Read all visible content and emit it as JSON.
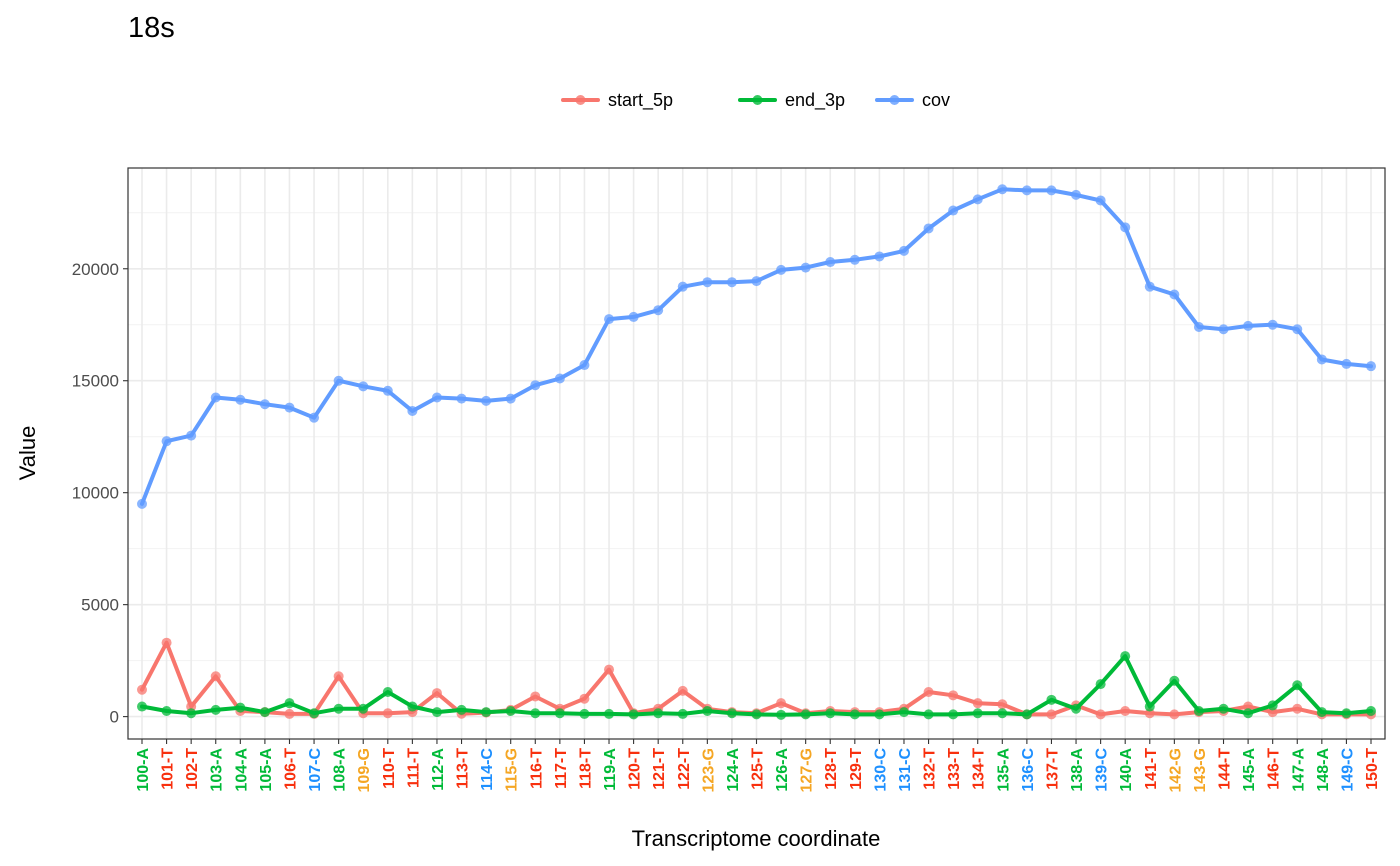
{
  "chart_data": {
    "type": "line",
    "title": "18s",
    "xlabel": "Transcriptome coordinate",
    "ylabel": "Value",
    "ylim": [
      -1000,
      24500
    ],
    "yticks": [
      0,
      5000,
      10000,
      15000,
      20000
    ],
    "legend_position": "top",
    "grid": true,
    "categories": [
      "100-A",
      "101-T",
      "102-T",
      "103-A",
      "104-A",
      "105-A",
      "106-T",
      "107-C",
      "108-A",
      "109-G",
      "110-T",
      "111-T",
      "112-A",
      "113-T",
      "114-C",
      "115-G",
      "116-T",
      "117-T",
      "118-T",
      "119-A",
      "120-T",
      "121-T",
      "122-T",
      "123-G",
      "124-A",
      "125-T",
      "126-A",
      "127-G",
      "128-T",
      "129-T",
      "130-C",
      "131-C",
      "132-T",
      "133-T",
      "134-T",
      "135-A",
      "136-C",
      "137-T",
      "138-A",
      "139-C",
      "140-A",
      "141-T",
      "142-G",
      "143-G",
      "144-T",
      "145-A",
      "146-T",
      "147-A",
      "148-A",
      "149-C",
      "150-T"
    ],
    "base_colors": {
      "A": "#00ba38",
      "T": "#f8300e",
      "C": "#1e90ff",
      "G": "#f5a623"
    },
    "series": [
      {
        "name": "start_5p",
        "color": "#f8766d",
        "values": [
          1200,
          3300,
          450,
          1800,
          250,
          200,
          120,
          120,
          1800,
          150,
          150,
          200,
          1050,
          130,
          180,
          300,
          900,
          350,
          800,
          2100,
          150,
          350,
          1150,
          350,
          200,
          150,
          600,
          150,
          250,
          200,
          200,
          350,
          1100,
          950,
          600,
          550,
          100,
          100,
          500,
          100,
          250,
          150,
          100,
          200,
          250,
          450,
          200,
          350,
          100,
          100,
          100
        ]
      },
      {
        "name": "end_3p",
        "color": "#00ba38",
        "values": [
          450,
          250,
          150,
          300,
          400,
          200,
          600,
          150,
          350,
          350,
          1100,
          450,
          200,
          300,
          200,
          250,
          150,
          150,
          120,
          120,
          100,
          150,
          120,
          250,
          150,
          100,
          80,
          100,
          150,
          100,
          100,
          200,
          100,
          100,
          150,
          150,
          100,
          750,
          350,
          1450,
          2700,
          450,
          1600,
          250,
          350,
          150,
          500,
          1400,
          200,
          150,
          250
        ]
      },
      {
        "name": "cov",
        "color": "#619cff",
        "values": [
          9500,
          12300,
          12550,
          14250,
          14150,
          13950,
          13800,
          13350,
          15000,
          14750,
          14550,
          13650,
          14250,
          14200,
          14100,
          14200,
          14800,
          15100,
          15700,
          17750,
          17850,
          18150,
          19200,
          19400,
          19400,
          19450,
          19950,
          20050,
          20300,
          20400,
          20550,
          20800,
          21800,
          22600,
          23100,
          23550,
          23500,
          23500,
          23300,
          23050,
          21850,
          19200,
          18850,
          17400,
          17300,
          17450,
          17500,
          17300,
          15950,
          15750,
          15650
        ]
      }
    ]
  }
}
